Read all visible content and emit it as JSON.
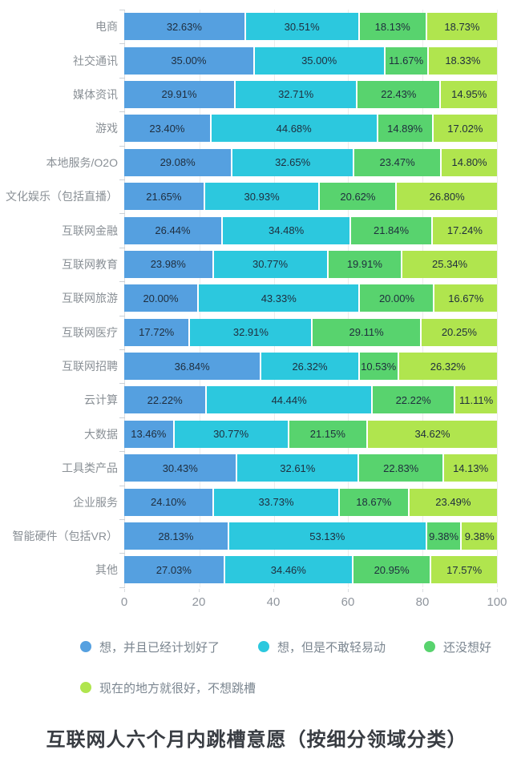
{
  "chart_data": {
    "type": "bar",
    "orientation": "horizontal",
    "stacked": true,
    "title": "互联网人六个月内跳槽意愿（按细分领域分类）",
    "value_suffix": "%",
    "xlim": [
      0,
      100
    ],
    "x_ticks": [
      0,
      20,
      40,
      60,
      80,
      100
    ],
    "grid": true,
    "legend_position": "bottom",
    "categories": [
      "电商",
      "社交通讯",
      "媒体资讯",
      "游戏",
      "本地服务/O2O",
      "文化娱乐（包括直播）",
      "互联网金融",
      "互联网教育",
      "互联网旅游",
      "互联网医疗",
      "互联网招聘",
      "云计算",
      "大数据",
      "工具类产品",
      "企业服务",
      "智能硬件（包括VR）",
      "其他"
    ],
    "series": [
      {
        "name": "想，并且已经计划好了",
        "color": "#55a0e0",
        "values": [
          32.63,
          35.0,
          29.91,
          23.4,
          29.08,
          21.65,
          26.44,
          23.98,
          20.0,
          17.72,
          36.84,
          22.22,
          13.46,
          30.43,
          24.1,
          28.13,
          27.03
        ]
      },
      {
        "name": "想，但是不敢轻易动",
        "color": "#2cc8de",
        "values": [
          30.51,
          35.0,
          32.71,
          44.68,
          32.65,
          30.93,
          34.48,
          30.77,
          43.33,
          32.91,
          26.32,
          44.44,
          30.77,
          32.61,
          33.73,
          53.13,
          34.46
        ]
      },
      {
        "name": "还没想好",
        "color": "#58d36e",
        "values": [
          18.13,
          11.67,
          22.43,
          14.89,
          23.47,
          20.62,
          21.84,
          19.91,
          20.0,
          29.11,
          10.53,
          22.22,
          21.15,
          22.83,
          18.67,
          9.38,
          20.95
        ]
      },
      {
        "name": "现在的地方就很好，不想跳槽",
        "color": "#b0e54e",
        "values": [
          18.73,
          18.33,
          14.95,
          17.02,
          14.8,
          26.8,
          17.24,
          25.34,
          16.67,
          20.25,
          26.32,
          11.11,
          34.62,
          14.13,
          23.49,
          9.38,
          17.57
        ]
      }
    ]
  }
}
